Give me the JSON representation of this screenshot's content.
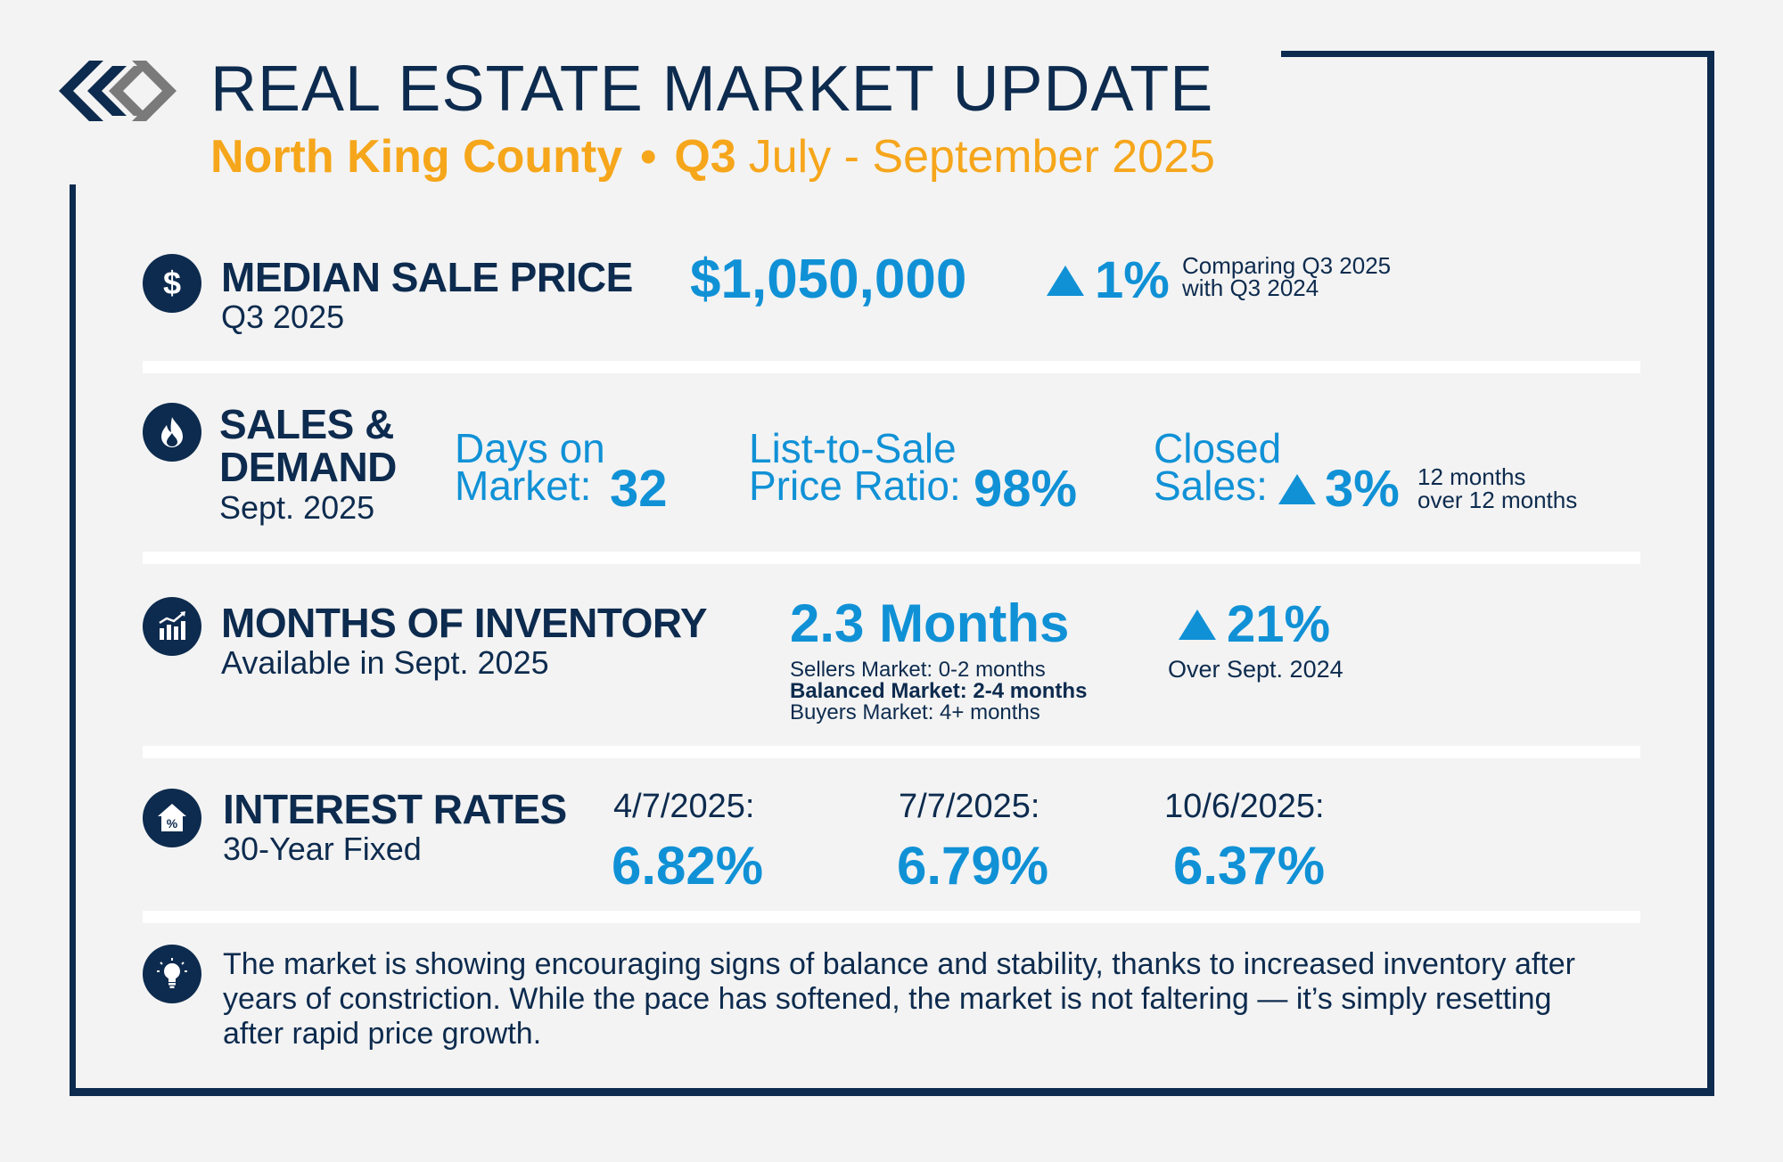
{
  "header": {
    "title": "REAL ESTATE MARKET UPDATE",
    "region": "North King County",
    "separator": "•",
    "quarter": "Q3",
    "period": "July - September 2025"
  },
  "median_sale_price": {
    "heading": "MEDIAN SALE PRICE",
    "subheading": "Q3 2025",
    "value": "$1,050,000",
    "change": "1%",
    "change_direction": "up",
    "note_line1": "Comparing Q3 2025",
    "note_line2": "with Q3 2024",
    "icon": "dollar-icon"
  },
  "sales_demand": {
    "heading_line1": "SALES &",
    "heading_line2": "DEMAND",
    "subheading": "Sept. 2025",
    "icon": "flame-icon",
    "days_on_market": {
      "label_line1": "Days on",
      "label_line2": "Market:",
      "value": "32"
    },
    "list_to_sale": {
      "label_line1": "List-to-Sale",
      "label_line2": "Price Ratio:",
      "value": "98%"
    },
    "closed_sales": {
      "label_line1": "Closed",
      "label_line2": "Sales:",
      "change": "3%",
      "change_direction": "up",
      "note_line1": "12 months",
      "note_line2": "over 12 months"
    }
  },
  "inventory": {
    "heading": "MONTHS OF INVENTORY",
    "subheading": "Available in Sept. 2025",
    "icon": "bar-chart-icon",
    "value": "2.3 Months",
    "legend": [
      "Sellers Market: 0-2 months",
      "Balanced Market: 2-4 months",
      "Buyers Market: 4+ months"
    ],
    "change": "21%",
    "change_direction": "up",
    "change_note": "Over Sept. 2024"
  },
  "interest_rates": {
    "heading": "INTEREST RATES",
    "subheading": "30-Year Fixed",
    "icon": "house-percent-icon",
    "rates": [
      {
        "date": "4/7/2025:",
        "rate": "6.82%"
      },
      {
        "date": "7/7/2025:",
        "rate": "6.79%"
      },
      {
        "date": "10/6/2025:",
        "rate": "6.37%"
      }
    ]
  },
  "insight": {
    "icon": "lightbulb-icon",
    "text": "The market is showing encouraging signs of balance and stability, thanks to increased inventory after years of constriction. While the pace has softened, the market is not faltering — it’s simply resetting after rapid price growth."
  },
  "colors": {
    "navy": "#0d2b4e",
    "blue": "#1091d6",
    "orange": "#f6a61b",
    "gray": "#7a7a7a",
    "background": "#f3f3f3"
  }
}
